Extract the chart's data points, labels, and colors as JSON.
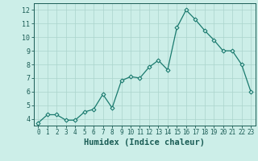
{
  "x": [
    0,
    1,
    2,
    3,
    4,
    5,
    6,
    7,
    8,
    9,
    10,
    11,
    12,
    13,
    14,
    15,
    16,
    17,
    18,
    19,
    20,
    21,
    22,
    23
  ],
  "y": [
    3.7,
    4.3,
    4.3,
    3.9,
    3.9,
    4.5,
    4.7,
    5.8,
    4.8,
    6.8,
    7.1,
    7.0,
    7.8,
    8.3,
    7.6,
    10.7,
    12.0,
    11.3,
    10.5,
    9.8,
    9.0,
    9.0,
    8.0,
    6.0
  ],
  "xlabel": "Humidex (Indice chaleur)",
  "ylabel": "",
  "line_color": "#1a7a6e",
  "marker": "D",
  "marker_size": 2.5,
  "bg_color": "#cceee8",
  "grid_color": "#aad4cc",
  "xlim": [
    -0.5,
    23.5
  ],
  "ylim": [
    3.5,
    12.5
  ],
  "yticks": [
    4,
    5,
    6,
    7,
    8,
    9,
    10,
    11,
    12
  ],
  "xtick_labels": [
    "0",
    "1",
    "2",
    "3",
    "4",
    "5",
    "6",
    "7",
    "8",
    "9",
    "10",
    "11",
    "12",
    "13",
    "14",
    "15",
    "16",
    "17",
    "18",
    "19",
    "20",
    "21",
    "22",
    "23"
  ],
  "tick_color": "#1a5c55",
  "axis_label_fontsize": 6.5,
  "tick_fontsize": 5.5
}
